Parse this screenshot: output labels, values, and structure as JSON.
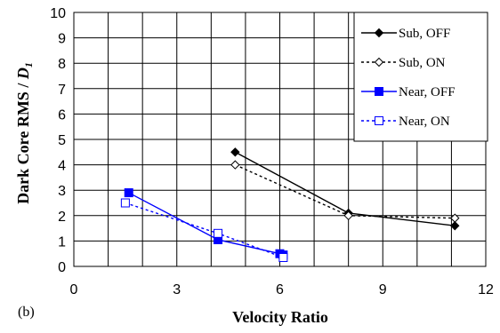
{
  "chart_data": {
    "type": "line",
    "panel_label": "(b)",
    "xlabel": "Velocity Ratio",
    "ylabel_main": "Dark Core  RMS / ",
    "ylabel_sym": "D",
    "ylabel_sub": "1",
    "xlim": [
      0,
      12
    ],
    "ylim": [
      0,
      10
    ],
    "xticks": [
      0,
      3,
      6,
      9,
      12
    ],
    "yticks": [
      0,
      1,
      2,
      3,
      4,
      5,
      6,
      7,
      8,
      9,
      10
    ],
    "grid": true,
    "legend_position": "top-right",
    "series": [
      {
        "name": "Sub, OFF",
        "color": "#000000",
        "dash": "solid",
        "marker": "diamond-filled",
        "x": [
          4.7,
          8.0,
          11.1
        ],
        "y": [
          4.5,
          2.1,
          1.6
        ]
      },
      {
        "name": "Sub, ON",
        "color": "#000000",
        "dash": "dashed",
        "marker": "diamond-open",
        "x": [
          4.7,
          8.0,
          11.1
        ],
        "y": [
          4.0,
          2.0,
          1.9
        ]
      },
      {
        "name": "Near, OFF",
        "color": "#0000ff",
        "dash": "solid",
        "marker": "square-filled",
        "x": [
          1.6,
          4.2,
          6.0,
          6.1
        ],
        "y": [
          2.9,
          1.05,
          0.5,
          0.45
        ]
      },
      {
        "name": "Near, ON",
        "color": "#0000ff",
        "dash": "dashed",
        "marker": "square-open",
        "x": [
          1.5,
          4.2,
          6.1
        ],
        "y": [
          2.5,
          1.3,
          0.35
        ]
      }
    ]
  }
}
